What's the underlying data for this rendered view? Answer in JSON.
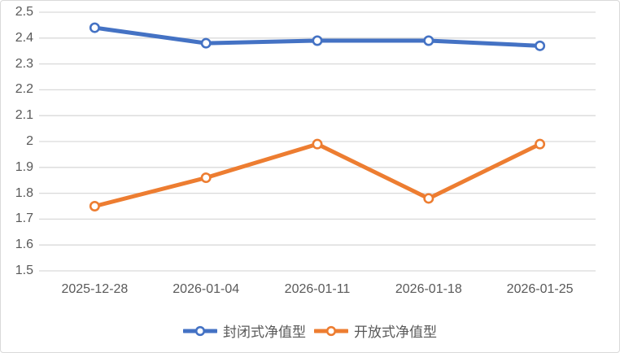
{
  "chart_data": {
    "type": "line",
    "title": "",
    "xlabel": "",
    "ylabel": "",
    "categories": [
      "2025-12-28",
      "2026-01-04",
      "2026-01-11",
      "2026-01-18",
      "2026-01-25"
    ],
    "series": [
      {
        "name": "封闭式净值型",
        "values": [
          2.44,
          2.38,
          2.39,
          2.39,
          2.37
        ],
        "color": "#4472C4"
      },
      {
        "name": "开放式净值型",
        "values": [
          1.75,
          1.86,
          1.99,
          1.78,
          1.99
        ],
        "color": "#ED7D31"
      }
    ],
    "ylim": [
      1.5,
      2.5
    ],
    "ytick_step": 0.1,
    "ytick_labels": [
      "2.5",
      "2.4",
      "2.3",
      "2.2",
      "2.1",
      "2",
      "1.9",
      "1.8",
      "1.7",
      "1.6",
      "1.5"
    ],
    "grid": true,
    "legend_position": "bottom",
    "marker": "open-circle"
  },
  "colors": {
    "background": "#FFFFFF",
    "border": "#D9D9D9",
    "gridline": "#D9D9D9",
    "axis_text": "#595959",
    "marker_fill": "#FFFFFF"
  }
}
